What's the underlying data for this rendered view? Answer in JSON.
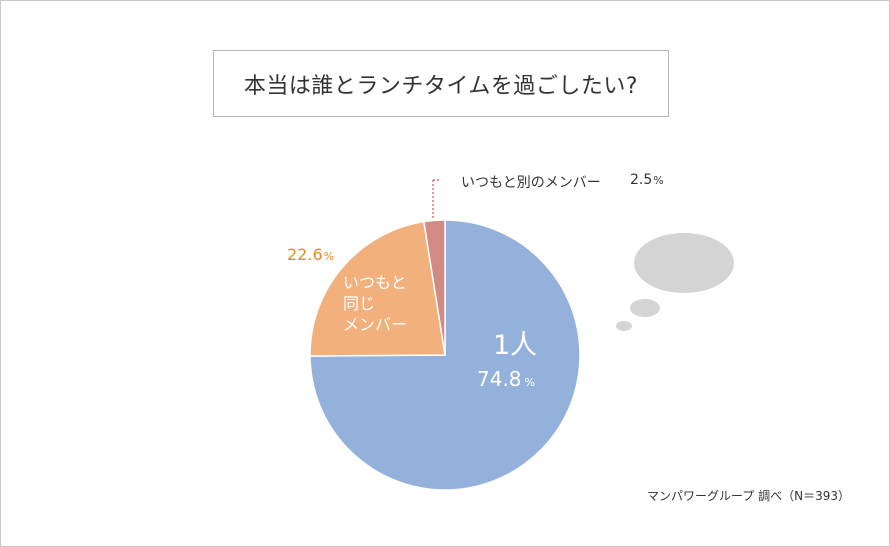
{
  "title": "本当は誰とランチタイムを過ごしたい?",
  "source_note": "マンパワーグループ 調べ（N＝393）",
  "colors": {
    "slice_alone": "#93b1db",
    "slice_same": "#f1b07c",
    "slice_other": "#d28b84",
    "accent_orange": "#e88a2e",
    "bubble": "#d4d4d4"
  },
  "labels": {
    "alone_name": "1人",
    "alone_value": "74.8",
    "same_name_line1": "いつもと",
    "same_name_line2": "同じ",
    "same_name_line3": "メンバー",
    "same_value": "22.6",
    "other_name": "いつもと別のメンバー",
    "other_value": "2.5",
    "pct_sign": "%"
  },
  "chart_data": {
    "type": "pie",
    "title": "本当は誰とランチタイムを過ごしたい?",
    "unit": "%",
    "slices": [
      {
        "name": "1人",
        "value": 74.8,
        "color": "#93b1db"
      },
      {
        "name": "いつもと同じメンバー",
        "value": 22.6,
        "color": "#f1b07c"
      },
      {
        "name": "いつもと別のメンバー",
        "value": 2.5,
        "color": "#d28b84"
      }
    ],
    "note": "マンパワーグループ 調べ（N＝393）"
  }
}
